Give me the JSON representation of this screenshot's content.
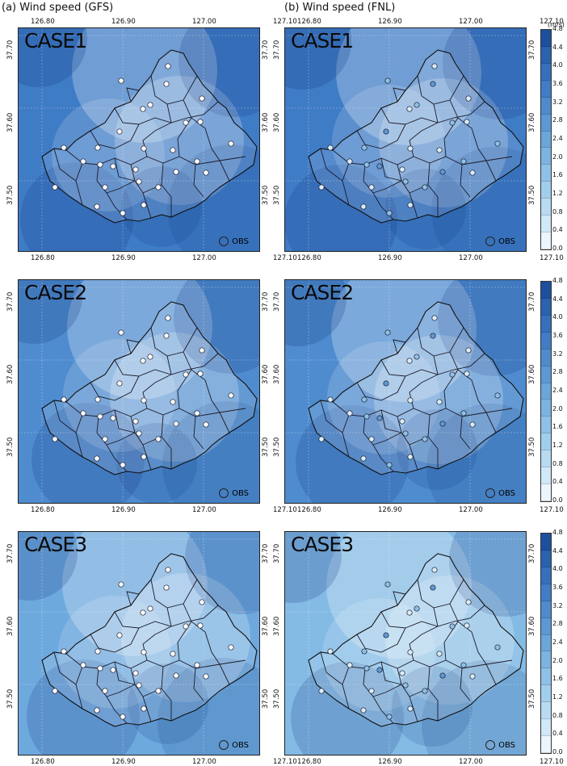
{
  "titles": {
    "left": "(a) Wind speed (GFS)",
    "right": "(b) Wind speed (FNL)"
  },
  "x_ticks": [
    "126.80",
    "126.90",
    "127.00",
    "127.10"
  ],
  "y_ticks": [
    "37.70",
    "37.60",
    "37.50"
  ],
  "cases": [
    "CASE1",
    "CASE2",
    "CASE3"
  ],
  "obs_label": "OBS",
  "colorbar": {
    "unit": "(m/s)",
    "ticks": [
      "4.8",
      "4.4",
      "4.0",
      "3.6",
      "3.2",
      "2.8",
      "2.4",
      "2.0",
      "1.6",
      "1.2",
      "0.8",
      "0.4",
      "0.0"
    ],
    "colors": [
      "#1d4f9c",
      "#2a62ae",
      "#3570bb",
      "#417dc4",
      "#4e8bcd",
      "#5c99d4",
      "#6ba6db",
      "#7cb4e1",
      "#8ec1e7",
      "#a2ceed",
      "#b8dbf2",
      "#d1e8f7",
      "#ecf5fc"
    ]
  },
  "panels": [
    {
      "case": "CASE1",
      "source": "GFS",
      "base": "#3f7cc6"
    },
    {
      "case": "CASE1",
      "source": "FNL",
      "base": "#3f7cc6"
    },
    {
      "case": "CASE2",
      "source": "GFS",
      "base": "#4f8ccf"
    },
    {
      "case": "CASE2",
      "source": "FNL",
      "base": "#4f8ccf"
    },
    {
      "case": "CASE3",
      "source": "GFS",
      "base": "#6ea9de"
    },
    {
      "case": "CASE3",
      "source": "FNL",
      "base": "#84bbe5"
    }
  ]
}
